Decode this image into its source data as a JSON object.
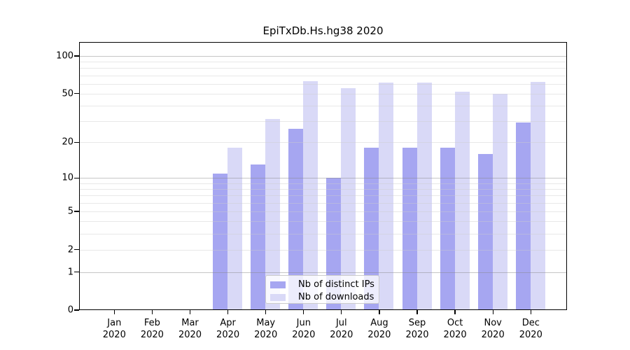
{
  "chart_data": {
    "type": "bar",
    "title": "EpiTxDb.Hs.hg38 2020",
    "categories": [
      "Jan",
      "Feb",
      "Mar",
      "Apr",
      "May",
      "Jun",
      "Jul",
      "Aug",
      "Sep",
      "Oct",
      "Nov",
      "Dec"
    ],
    "year": "2020",
    "series": [
      {
        "name": "Nb of distinct IPs",
        "color": "#a6a6f1",
        "values": [
          0,
          0,
          0,
          11,
          13,
          26,
          10,
          18,
          18,
          18,
          16,
          29
        ]
      },
      {
        "name": "Nb of downloads",
        "color": "#d9d9f7",
        "values": [
          0,
          0,
          0,
          18,
          31,
          63,
          55,
          61,
          61,
          52,
          50,
          62
        ]
      }
    ],
    "y_axis": {
      "scale": "log1p",
      "ticks": [
        0,
        1,
        2,
        5,
        10,
        20,
        50,
        100
      ],
      "major_grid": [
        1,
        10,
        100
      ],
      "minor_grid": [
        2,
        3,
        4,
        5,
        6,
        7,
        8,
        9,
        20,
        30,
        40,
        50,
        60,
        70,
        80,
        90
      ],
      "vmax": 129
    },
    "x_axis": {
      "label_format": "month over year"
    },
    "legend": {
      "position": "inside-bottom-center"
    },
    "grid": true,
    "background": "#ffffff",
    "frame_color": "#000000"
  }
}
